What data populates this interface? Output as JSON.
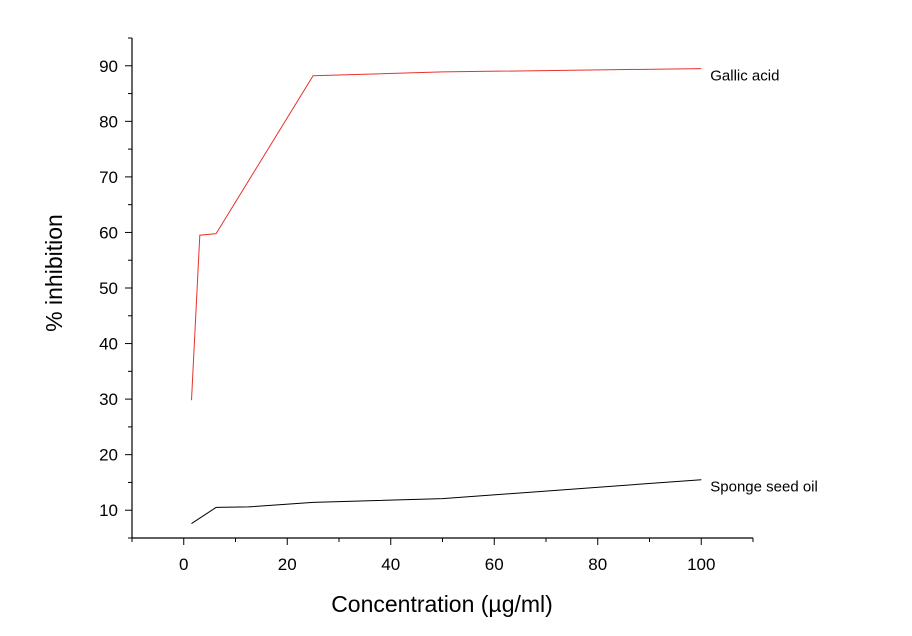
{
  "chart_data": {
    "type": "line",
    "title": "",
    "xlabel": "Concentration (µg/ml)",
    "ylabel": "% inhibition",
    "xlim": [
      -10,
      110
    ],
    "ylim": [
      5,
      95
    ],
    "xticks": [
      0,
      20,
      40,
      60,
      80,
      100
    ],
    "yticks": [
      10,
      20,
      30,
      40,
      50,
      60,
      70,
      80,
      90
    ],
    "grid": false,
    "legend": "none",
    "series": [
      {
        "name": "Gallic acid",
        "color": "#e8322c",
        "x": [
          1.5,
          3.1,
          6.25,
          25,
          50,
          100
        ],
        "y": [
          29.8,
          59.5,
          59.8,
          88.2,
          88.9,
          89.5
        ]
      },
      {
        "name": "Sponge seed oil",
        "color": "#000000",
        "x": [
          1.5,
          6.25,
          12.5,
          25,
          50,
          100
        ],
        "y": [
          7.6,
          10.5,
          10.6,
          11.4,
          12.1,
          15.5
        ]
      }
    ]
  }
}
